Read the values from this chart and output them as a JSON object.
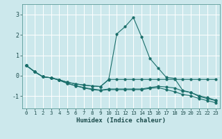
{
  "title": "",
  "xlabel": "Humidex (Indice chaleur)",
  "background_color": "#cce8ec",
  "grid_color": "#ffffff",
  "line_color": "#1a6e6a",
  "xlim": [
    -0.5,
    23.5
  ],
  "ylim": [
    -1.6,
    3.5
  ],
  "yticks": [
    -1,
    0,
    1,
    2,
    3
  ],
  "xticks": [
    0,
    1,
    2,
    3,
    4,
    5,
    6,
    7,
    8,
    9,
    10,
    11,
    12,
    13,
    14,
    15,
    16,
    17,
    18,
    19,
    20,
    21,
    22,
    23
  ],
  "lines": [
    {
      "x": [
        0,
        1,
        2,
        3,
        4,
        5,
        6,
        7,
        8,
        9,
        10,
        11,
        12,
        13,
        14,
        15,
        16,
        17,
        18,
        19,
        20,
        21,
        22,
        23
      ],
      "y": [
        0.5,
        0.2,
        -0.05,
        -0.1,
        -0.2,
        -0.32,
        -0.4,
        -0.46,
        -0.5,
        -0.53,
        -0.2,
        2.05,
        2.4,
        2.85,
        1.9,
        0.85,
        0.38,
        -0.08,
        -0.13,
        -0.72,
        -0.82,
        -1.02,
        -1.12,
        -1.22
      ]
    },
    {
      "x": [
        0,
        1,
        2,
        3,
        4,
        5,
        6,
        7,
        8,
        9,
        10,
        11,
        12,
        13,
        14,
        15,
        16,
        17,
        18,
        19,
        20,
        21,
        22,
        23
      ],
      "y": [
        0.5,
        0.2,
        -0.05,
        -0.1,
        -0.2,
        -0.32,
        -0.4,
        -0.46,
        -0.5,
        -0.53,
        -0.18,
        -0.18,
        -0.18,
        -0.18,
        -0.18,
        -0.18,
        -0.18,
        -0.18,
        -0.18,
        -0.18,
        -0.18,
        -0.18,
        -0.18,
        -0.18
      ]
    },
    {
      "x": [
        0,
        1,
        2,
        3,
        4,
        5,
        6,
        7,
        8,
        9,
        10,
        11,
        12,
        13,
        14,
        15,
        16,
        17,
        18,
        19,
        20,
        21,
        22,
        23
      ],
      "y": [
        0.5,
        0.2,
        -0.05,
        -0.1,
        -0.22,
        -0.38,
        -0.48,
        -0.58,
        -0.65,
        -0.7,
        -0.65,
        -0.65,
        -0.65,
        -0.65,
        -0.65,
        -0.58,
        -0.52,
        -0.55,
        -0.6,
        -0.75,
        -0.82,
        -0.98,
        -1.07,
        -1.2
      ]
    },
    {
      "x": [
        0,
        1,
        2,
        3,
        4,
        5,
        6,
        7,
        8,
        9,
        10,
        11,
        12,
        13,
        14,
        15,
        16,
        17,
        18,
        19,
        20,
        21,
        22,
        23
      ],
      "y": [
        0.5,
        0.2,
        -0.05,
        -0.1,
        -0.22,
        -0.38,
        -0.5,
        -0.6,
        -0.68,
        -0.72,
        -0.68,
        -0.68,
        -0.68,
        -0.68,
        -0.68,
        -0.62,
        -0.58,
        -0.68,
        -0.78,
        -0.92,
        -0.98,
        -1.12,
        -1.22,
        -1.32
      ]
    }
  ]
}
